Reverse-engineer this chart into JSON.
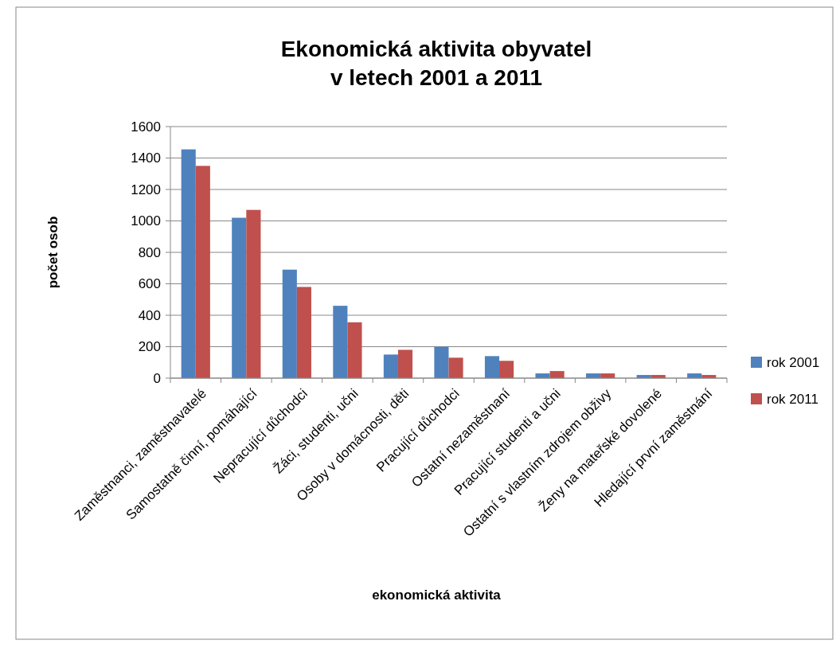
{
  "chart_data": {
    "type": "bar",
    "title": "Ekonomická aktivita obyvatel\nv letech 2001 a 2011",
    "xlabel": "ekonomická aktivita",
    "ylabel": "počet osob",
    "categories": [
      "Zaměstnanci, zaměstnavatelé",
      "Samostatně činní, pomáhající",
      "Nepracující důchodci",
      "Žáci, studenti, učni",
      "Osoby v domácnosti, děti",
      "Pracující důchodci",
      "Ostatní nezaměstnaní",
      "Pracující studenti a učni",
      "Ostatní s vlastním zdrojem obživy",
      "Ženy na mateřské dovolené",
      "Hledající první zaměstnání"
    ],
    "series": [
      {
        "name": "rok 2001",
        "color": "#4f81bd",
        "values": [
          1455,
          1020,
          690,
          460,
          150,
          200,
          140,
          30,
          30,
          20,
          30
        ]
      },
      {
        "name": "rok 2011",
        "color": "#c0504d",
        "values": [
          1350,
          1070,
          580,
          355,
          180,
          130,
          110,
          45,
          30,
          20,
          20
        ]
      }
    ],
    "ylim": [
      0,
      1600
    ],
    "yticks": [
      0,
      200,
      400,
      600,
      800,
      1000,
      1200,
      1400,
      1600
    ],
    "grid": "y",
    "legend": "right"
  }
}
